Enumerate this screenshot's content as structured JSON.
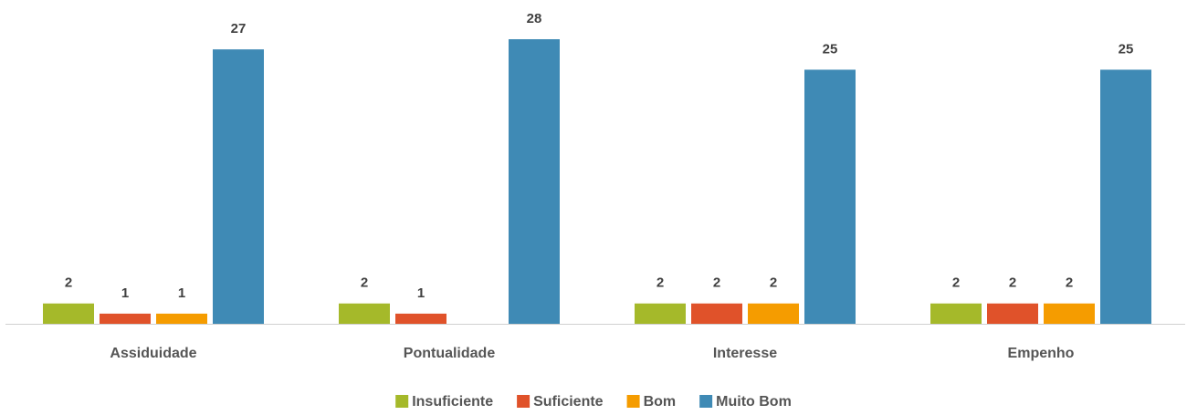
{
  "chart_data": {
    "type": "bar",
    "categories": [
      "Assiduidade",
      "Pontualidade",
      "Interesse",
      "Empenho"
    ],
    "series": [
      {
        "name": "Insuficiente",
        "color": "#a5b92a",
        "values": [
          2,
          2,
          2,
          2
        ]
      },
      {
        "name": "Suficiente",
        "color": "#e0522a",
        "values": [
          1,
          1,
          2,
          2
        ]
      },
      {
        "name": "Bom",
        "color": "#f59c00",
        "values": [
          1,
          null,
          2,
          2
        ]
      },
      {
        "name": "Muito Bom",
        "color": "#3f8ab5",
        "values": [
          27,
          28,
          25,
          25
        ]
      }
    ],
    "legend": "bottom"
  }
}
